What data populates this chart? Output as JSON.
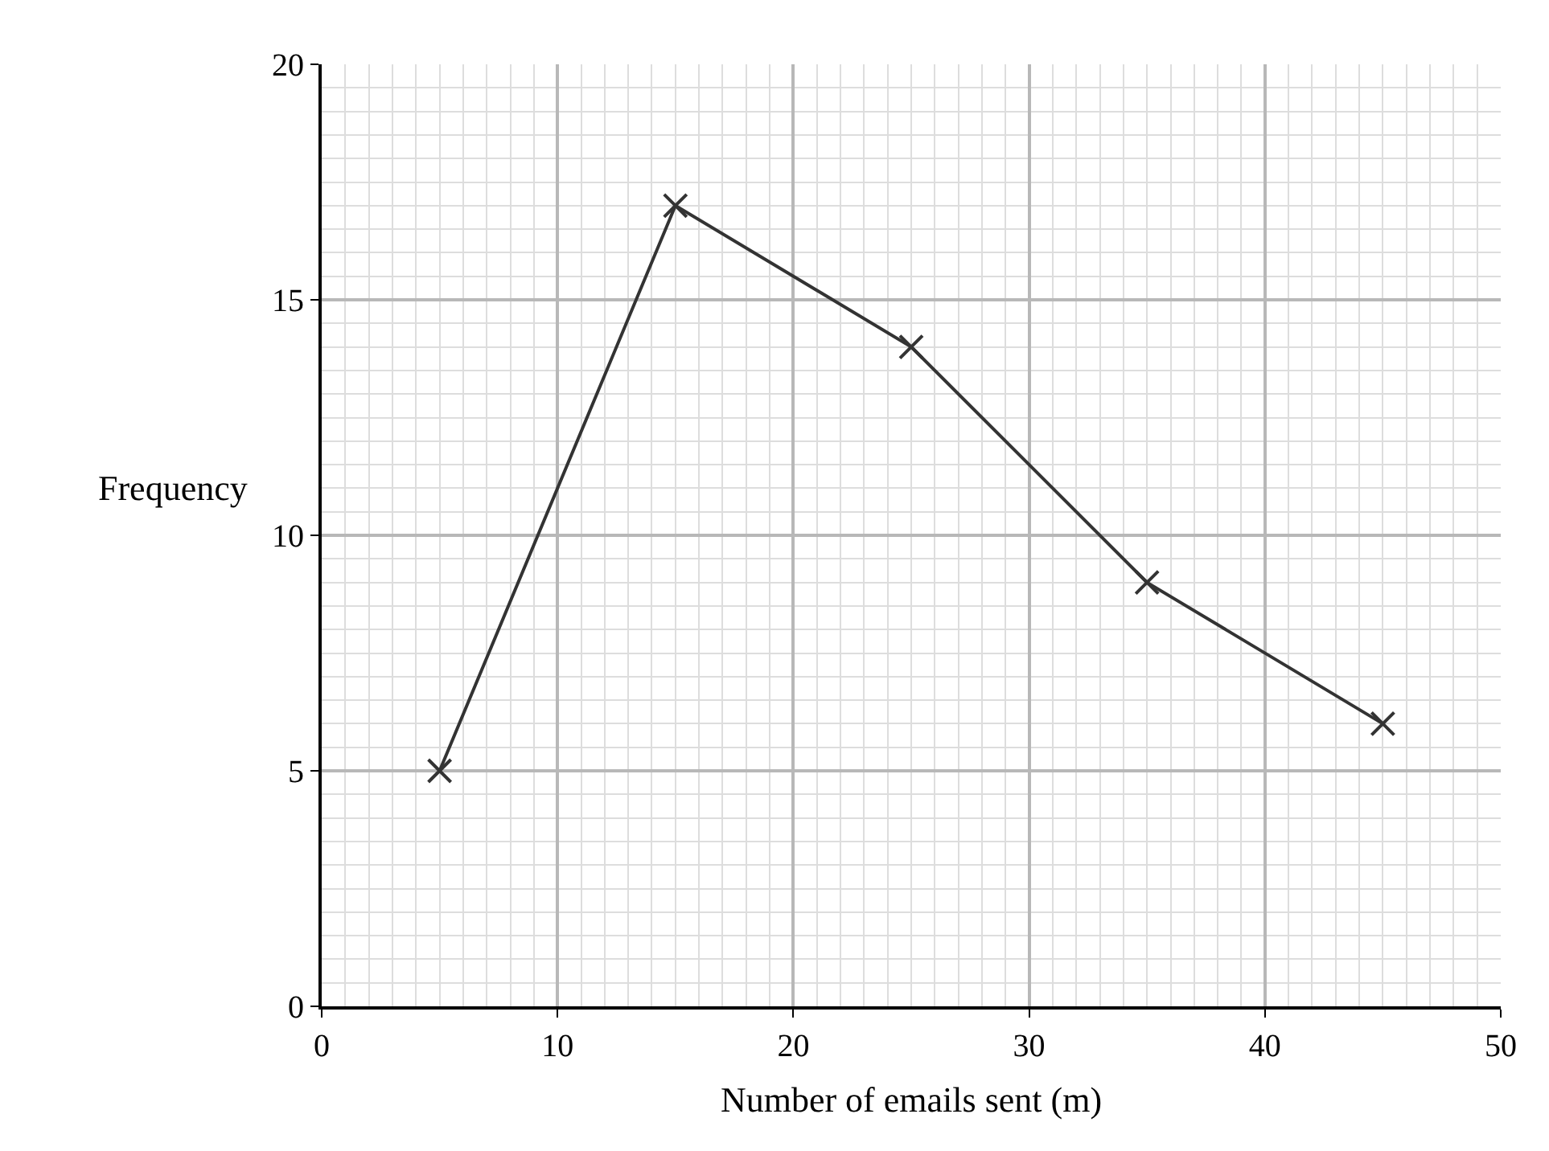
{
  "chart_data": {
    "type": "line",
    "xlabel": "Number of emails sent (m)",
    "ylabel": "Frequency",
    "x": [
      5,
      15,
      25,
      35,
      45
    ],
    "series": [
      {
        "color": "#333333",
        "values": [
          5,
          17,
          14,
          9,
          6
        ]
      }
    ],
    "xlim": [
      0,
      50
    ],
    "ylim": [
      0,
      20
    ],
    "xticks": [
      0,
      10,
      20,
      30,
      40,
      50
    ],
    "yticks": [
      0,
      5,
      10,
      15,
      20
    ],
    "grid": true,
    "marker": "cross",
    "line_style": "solid",
    "legend": false
  }
}
